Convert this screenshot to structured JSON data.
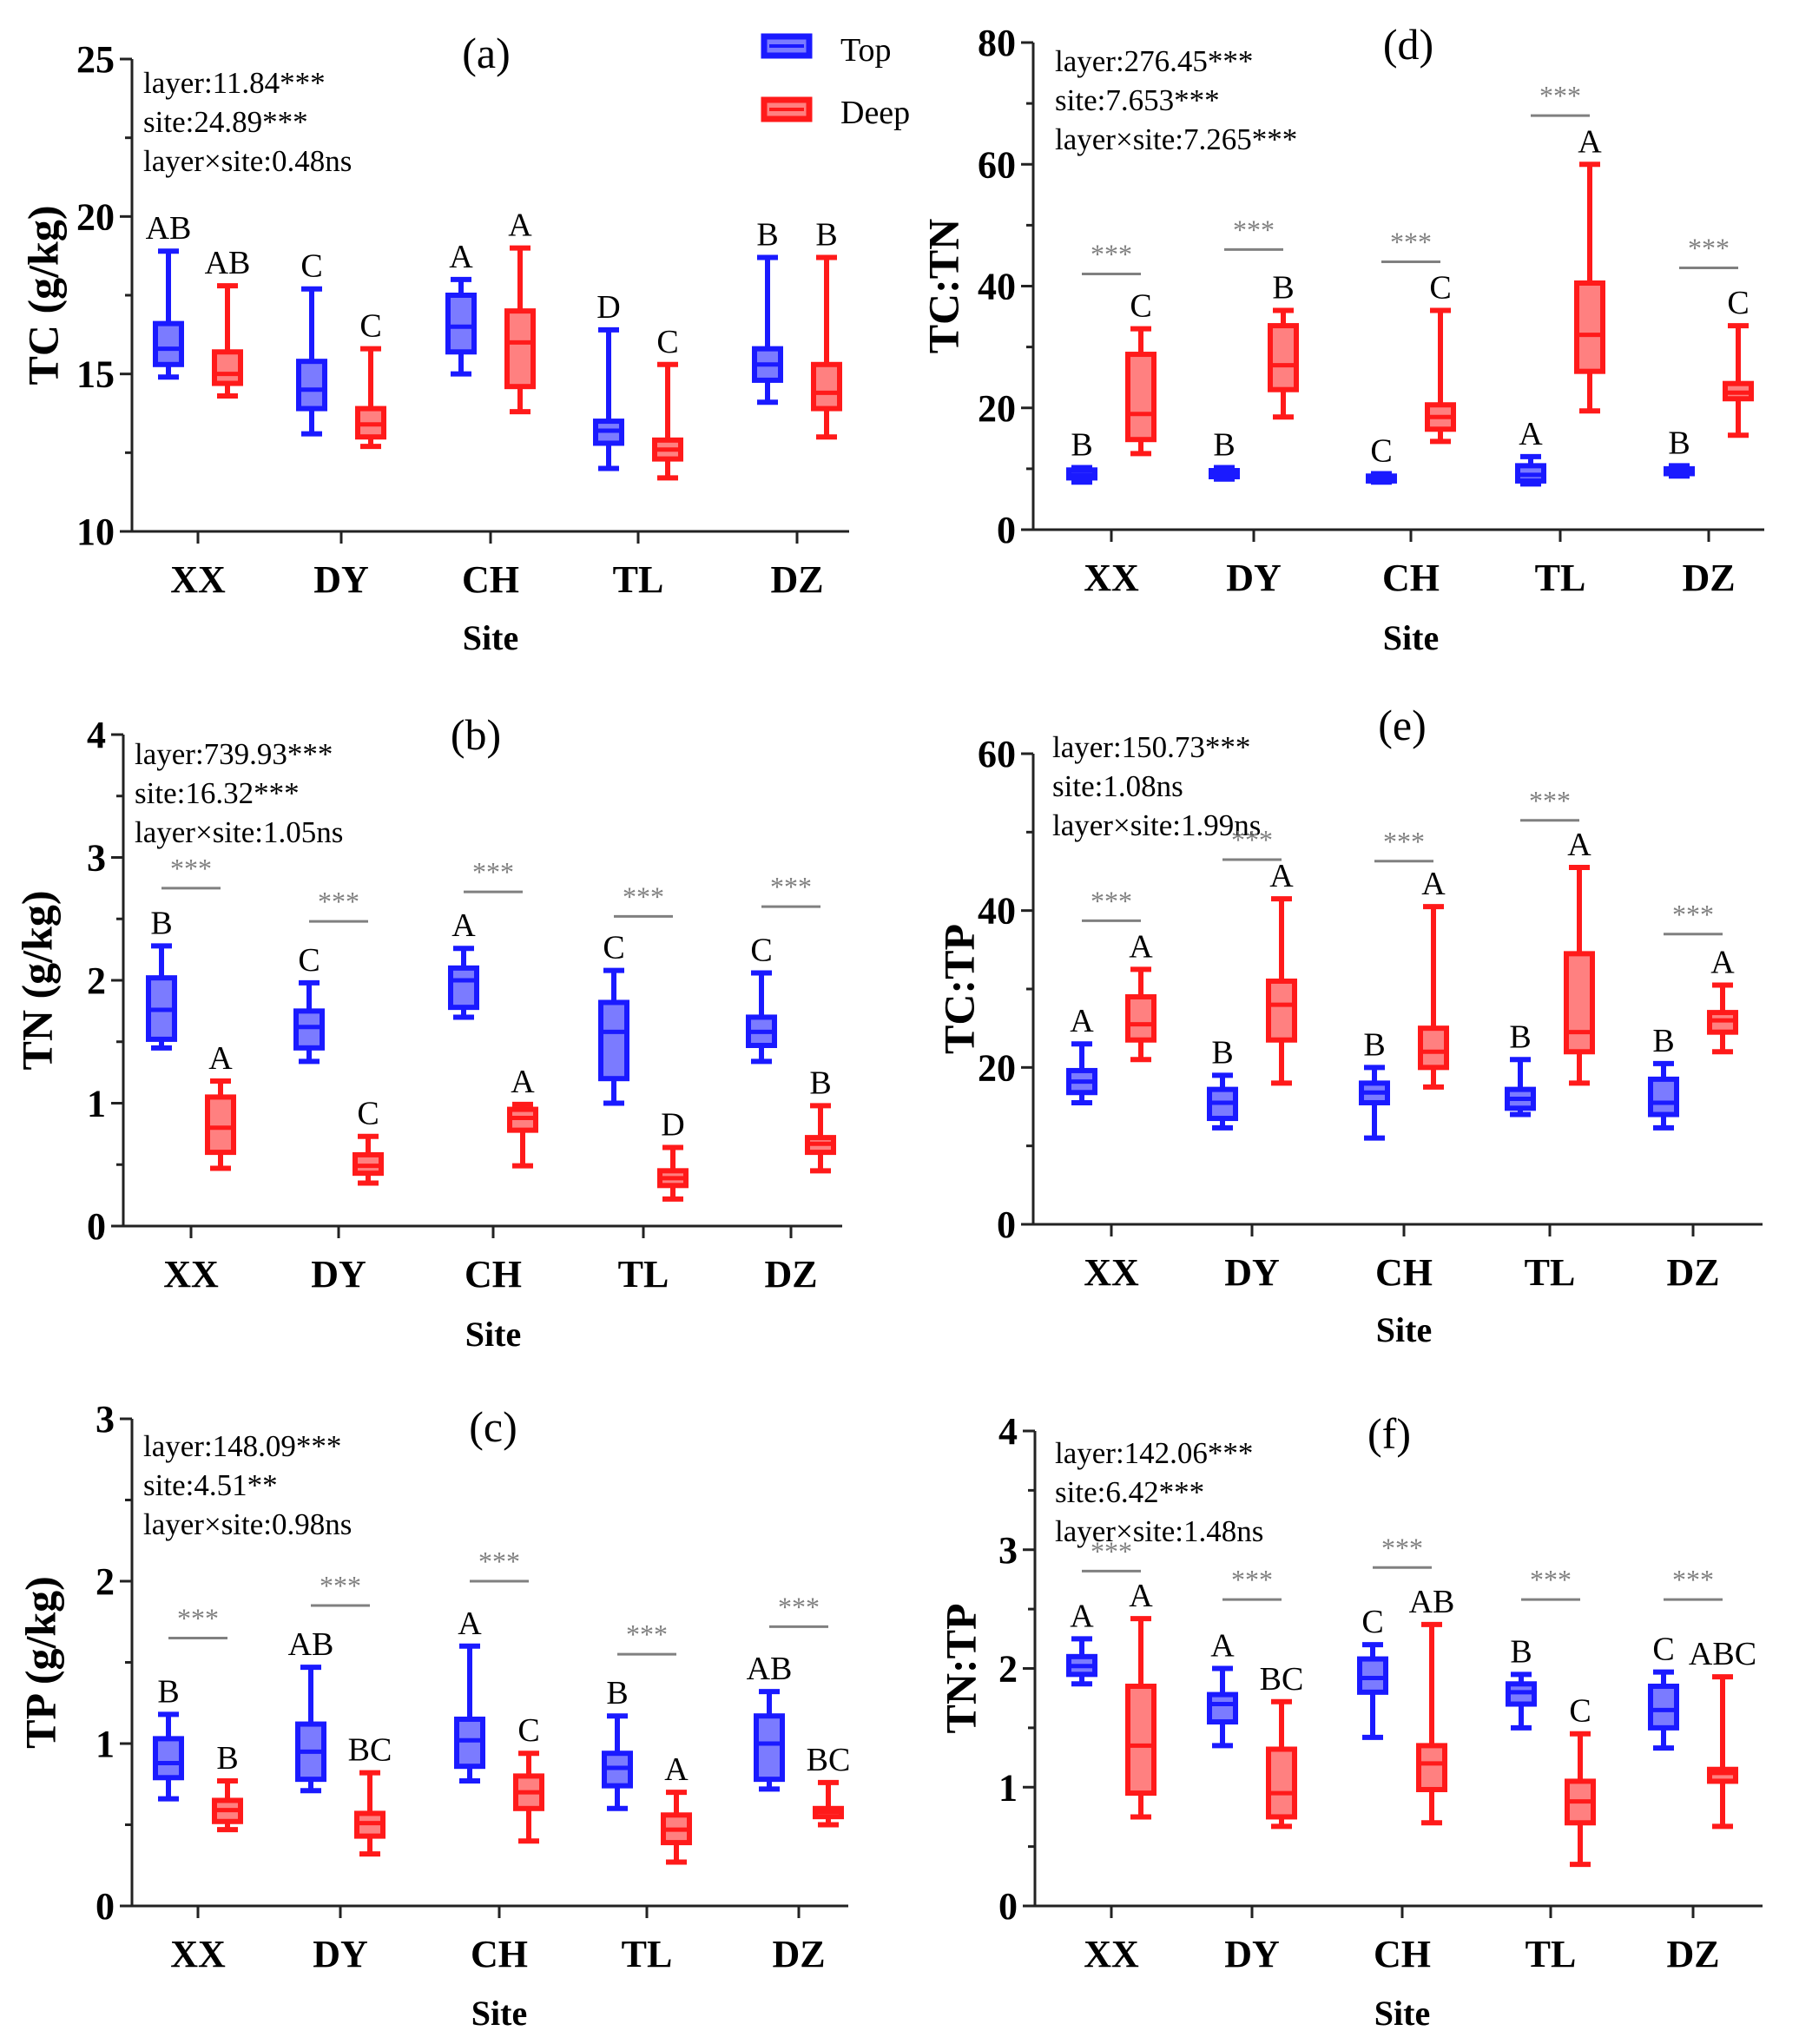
{
  "colors": {
    "top": "#1a1aff",
    "top_fill": "#7b7bff",
    "deep": "#ff1a1a",
    "deep_fill": "#ff8080",
    "sig_line": "#808080"
  },
  "legend": {
    "top_label": "Top",
    "deep_label": "Deep"
  },
  "chart_data": [
    {
      "type": "box",
      "panel_label": "(a)",
      "ylabel": "TC (g/kg)",
      "xlabel": "Site",
      "categories": [
        "XX",
        "DY",
        "CH",
        "TL",
        "DZ"
      ],
      "ylim": [
        10,
        25
      ],
      "yticks": [
        10,
        15,
        20,
        25
      ],
      "stats_text": [
        "layer:11.84***",
        "site:24.89***",
        "layer×site:0.48ns"
      ],
      "series": [
        {
          "name": "Top",
          "boxes": [
            {
              "min": 14.9,
              "q1": 15.3,
              "median": 15.8,
              "q3": 16.6,
              "max": 18.9
            },
            {
              "min": 13.1,
              "q1": 13.9,
              "median": 14.5,
              "q3": 15.4,
              "max": 17.7
            },
            {
              "min": 15.0,
              "q1": 15.7,
              "median": 16.5,
              "q3": 17.5,
              "max": 18.0
            },
            {
              "min": 12.0,
              "q1": 12.8,
              "median": 13.2,
              "q3": 13.5,
              "max": 16.4
            },
            {
              "min": 14.1,
              "q1": 14.8,
              "median": 15.3,
              "q3": 15.8,
              "max": 18.7
            }
          ],
          "letters": [
            "AB",
            "C",
            "A",
            "D",
            "B"
          ]
        },
        {
          "name": "Deep",
          "boxes": [
            {
              "min": 14.3,
              "q1": 14.7,
              "median": 15.0,
              "q3": 15.7,
              "max": 17.8
            },
            {
              "min": 12.7,
              "q1": 13.0,
              "median": 13.4,
              "q3": 13.9,
              "max": 15.8
            },
            {
              "min": 13.8,
              "q1": 14.6,
              "median": 16.0,
              "q3": 17.0,
              "max": 19.0
            },
            {
              "min": 11.7,
              "q1": 12.3,
              "median": 12.6,
              "q3": 12.9,
              "max": 15.3
            },
            {
              "min": 13.0,
              "q1": 13.9,
              "median": 14.4,
              "q3": 15.3,
              "max": 18.7
            }
          ],
          "letters": [
            "AB",
            "C",
            "A",
            "C",
            "B"
          ]
        }
      ],
      "significance": []
    },
    {
      "type": "box",
      "panel_label": "(b)",
      "ylabel": "TN (g/kg)",
      "xlabel": "Site",
      "categories": [
        "XX",
        "DY",
        "CH",
        "TL",
        "DZ"
      ],
      "ylim": [
        0,
        4
      ],
      "yticks": [
        0,
        1,
        2,
        3,
        4
      ],
      "stats_text": [
        "layer:739.93***",
        "site:16.32***",
        "layer×site:1.05ns"
      ],
      "series": [
        {
          "name": "Top",
          "boxes": [
            {
              "min": 1.45,
              "q1": 1.52,
              "median": 1.76,
              "q3": 2.02,
              "max": 2.28
            },
            {
              "min": 1.34,
              "q1": 1.45,
              "median": 1.62,
              "q3": 1.75,
              "max": 1.98
            },
            {
              "min": 1.7,
              "q1": 1.78,
              "median": 2.0,
              "q3": 2.1,
              "max": 2.26
            },
            {
              "min": 1.0,
              "q1": 1.2,
              "median": 1.58,
              "q3": 1.82,
              "max": 2.08
            },
            {
              "min": 1.34,
              "q1": 1.47,
              "median": 1.58,
              "q3": 1.7,
              "max": 2.06
            }
          ],
          "letters": [
            "B",
            "C",
            "A",
            "C",
            "C"
          ]
        },
        {
          "name": "Deep",
          "boxes": [
            {
              "min": 0.47,
              "q1": 0.6,
              "median": 0.8,
              "q3": 1.05,
              "max": 1.18
            },
            {
              "min": 0.35,
              "q1": 0.43,
              "median": 0.49,
              "q3": 0.58,
              "max": 0.73
            },
            {
              "min": 0.49,
              "q1": 0.78,
              "median": 0.88,
              "q3": 0.95,
              "max": 0.99
            },
            {
              "min": 0.22,
              "q1": 0.33,
              "median": 0.39,
              "q3": 0.45,
              "max": 0.64
            },
            {
              "min": 0.45,
              "q1": 0.6,
              "median": 0.67,
              "q3": 0.72,
              "max": 0.98
            }
          ],
          "letters": [
            "A",
            "C",
            "A",
            "D",
            "B"
          ]
        }
      ],
      "significance": [
        {
          "index": 0,
          "label": "***",
          "y": 2.75
        },
        {
          "index": 1,
          "label": "***",
          "y": 2.48
        },
        {
          "index": 2,
          "label": "***",
          "y": 2.72
        },
        {
          "index": 3,
          "label": "***",
          "y": 2.52
        },
        {
          "index": 4,
          "label": "***",
          "y": 2.6
        }
      ]
    },
    {
      "type": "box",
      "panel_label": "(c)",
      "ylabel": "TP (g/kg)",
      "xlabel": "Site",
      "categories": [
        "XX",
        "DY",
        "CH",
        "TL",
        "DZ"
      ],
      "ylim": [
        0,
        3
      ],
      "yticks": [
        0,
        1,
        2,
        3
      ],
      "stats_text": [
        "layer:148.09***",
        "site:4.51**",
        "layer×site:0.98ns"
      ],
      "series": [
        {
          "name": "Top",
          "boxes": [
            {
              "min": 0.66,
              "q1": 0.79,
              "median": 0.88,
              "q3": 1.03,
              "max": 1.18
            },
            {
              "min": 0.71,
              "q1": 0.78,
              "median": 0.95,
              "q3": 1.12,
              "max": 1.47
            },
            {
              "min": 0.77,
              "q1": 0.86,
              "median": 1.02,
              "q3": 1.15,
              "max": 1.6
            },
            {
              "min": 0.6,
              "q1": 0.74,
              "median": 0.85,
              "q3": 0.94,
              "max": 1.17
            },
            {
              "min": 0.72,
              "q1": 0.78,
              "median": 1.0,
              "q3": 1.17,
              "max": 1.32
            }
          ],
          "letters": [
            "B",
            "AB",
            "A",
            "B",
            "AB"
          ]
        },
        {
          "name": "Deep",
          "boxes": [
            {
              "min": 0.47,
              "q1": 0.52,
              "median": 0.59,
              "q3": 0.65,
              "max": 0.77
            },
            {
              "min": 0.32,
              "q1": 0.43,
              "median": 0.51,
              "q3": 0.57,
              "max": 0.82
            },
            {
              "min": 0.4,
              "q1": 0.6,
              "median": 0.7,
              "q3": 0.8,
              "max": 0.94
            },
            {
              "min": 0.27,
              "q1": 0.39,
              "median": 0.47,
              "q3": 0.56,
              "max": 0.7
            },
            {
              "min": 0.5,
              "q1": 0.55,
              "median": 0.58,
              "q3": 0.6,
              "max": 0.76
            }
          ],
          "letters": [
            "B",
            "BC",
            "C",
            "A",
            "BC"
          ]
        }
      ],
      "significance": [
        {
          "index": 0,
          "label": "***",
          "y": 1.65
        },
        {
          "index": 1,
          "label": "***",
          "y": 1.85
        },
        {
          "index": 2,
          "label": "***",
          "y": 2.0
        },
        {
          "index": 3,
          "label": "***",
          "y": 1.55
        },
        {
          "index": 4,
          "label": "***",
          "y": 1.72
        }
      ]
    },
    {
      "type": "box",
      "panel_label": "(d)",
      "ylabel": "TC:TN",
      "xlabel": "Site",
      "categories": [
        "XX",
        "DY",
        "CH",
        "TL",
        "DZ"
      ],
      "ylim": [
        0,
        80
      ],
      "yticks": [
        0,
        20,
        40,
        60,
        80
      ],
      "stats_text": [
        "layer:276.45***",
        "site:7.653***",
        "layer×site:7.265***"
      ],
      "series": [
        {
          "name": "Top",
          "boxes": [
            {
              "min": 7.8,
              "q1": 8.5,
              "median": 9.0,
              "q3": 9.8,
              "max": 10.2
            },
            {
              "min": 8.3,
              "q1": 8.7,
              "median": 9.2,
              "q3": 9.7,
              "max": 10.2
            },
            {
              "min": 7.8,
              "q1": 8.0,
              "median": 8.4,
              "q3": 8.8,
              "max": 9.2
            },
            {
              "min": 7.5,
              "q1": 8.0,
              "median": 9.0,
              "q3": 10.5,
              "max": 12.0
            },
            {
              "min": 8.8,
              "q1": 9.2,
              "median": 9.6,
              "q3": 10.0,
              "max": 10.5
            }
          ],
          "letters": [
            "B",
            "B",
            "C",
            "A",
            "B"
          ]
        },
        {
          "name": "Deep",
          "boxes": [
            {
              "min": 12.5,
              "q1": 14.8,
              "median": 19.0,
              "q3": 28.8,
              "max": 33.0
            },
            {
              "min": 18.5,
              "q1": 23.0,
              "median": 27.0,
              "q3": 33.5,
              "max": 36.0
            },
            {
              "min": 14.5,
              "q1": 16.5,
              "median": 18.5,
              "q3": 20.5,
              "max": 36.0
            },
            {
              "min": 19.5,
              "q1": 26.0,
              "median": 32.0,
              "q3": 40.5,
              "max": 60.0
            },
            {
              "min": 15.5,
              "q1": 21.5,
              "median": 22.5,
              "q3": 24.0,
              "max": 33.5
            }
          ],
          "letters": [
            "C",
            "B",
            "C",
            "A",
            "C"
          ]
        }
      ],
      "significance": [
        {
          "index": 0,
          "label": "***",
          "y": 42.0
        },
        {
          "index": 1,
          "label": "***",
          "y": 46.0
        },
        {
          "index": 2,
          "label": "***",
          "y": 44.0
        },
        {
          "index": 3,
          "label": "***",
          "y": 68.0
        },
        {
          "index": 4,
          "label": "***",
          "y": 43.0
        }
      ]
    },
    {
      "type": "box",
      "panel_label": "(e)",
      "ylabel": "TC:TP",
      "xlabel": "Site",
      "categories": [
        "XX",
        "DY",
        "CH",
        "TL",
        "DZ"
      ],
      "ylim": [
        0,
        60
      ],
      "yticks": [
        0,
        20,
        40,
        60
      ],
      "stats_text": [
        "layer:150.73***",
        "site:1.08ns",
        "layer×site:1.99ns"
      ],
      "series": [
        {
          "name": "Top",
          "boxes": [
            {
              "min": 15.5,
              "q1": 16.8,
              "median": 18.2,
              "q3": 19.6,
              "max": 23.0
            },
            {
              "min": 12.3,
              "q1": 13.5,
              "median": 15.5,
              "q3": 17.2,
              "max": 19.0
            },
            {
              "min": 11.0,
              "q1": 15.5,
              "median": 16.8,
              "q3": 18.0,
              "max": 20.0
            },
            {
              "min": 14.0,
              "q1": 14.8,
              "median": 16.0,
              "q3": 17.2,
              "max": 21.0
            },
            {
              "min": 12.3,
              "q1": 14.0,
              "median": 15.5,
              "q3": 18.5,
              "max": 20.5
            }
          ],
          "letters": [
            "A",
            "B",
            "B",
            "B",
            "B"
          ]
        },
        {
          "name": "Deep",
          "boxes": [
            {
              "min": 21.0,
              "q1": 23.5,
              "median": 25.5,
              "q3": 29.0,
              "max": 32.5
            },
            {
              "min": 18.0,
              "q1": 23.5,
              "median": 28.0,
              "q3": 31.0,
              "max": 41.5
            },
            {
              "min": 17.5,
              "q1": 20.0,
              "median": 22.0,
              "q3": 25.0,
              "max": 40.5
            },
            {
              "min": 18.0,
              "q1": 22.0,
              "median": 24.5,
              "q3": 34.5,
              "max": 45.5
            },
            {
              "min": 22.0,
              "q1": 24.5,
              "median": 26.0,
              "q3": 27.0,
              "max": 30.5
            }
          ],
          "letters": [
            "A",
            "A",
            "A",
            "A",
            "A"
          ]
        }
      ],
      "significance": [
        {
          "index": 0,
          "label": "***",
          "y": 38.7
        },
        {
          "index": 1,
          "label": "***",
          "y": 46.5
        },
        {
          "index": 2,
          "label": "***",
          "y": 46.3
        },
        {
          "index": 3,
          "label": "***",
          "y": 51.5
        },
        {
          "index": 4,
          "label": "***",
          "y": 37.0
        }
      ]
    },
    {
      "type": "box",
      "panel_label": "(f)",
      "ylabel": "TN:TP",
      "xlabel": "Site",
      "categories": [
        "XX",
        "DY",
        "CH",
        "TL",
        "DZ"
      ],
      "ylim": [
        0,
        4
      ],
      "yticks": [
        0,
        1,
        2,
        3,
        4
      ],
      "stats_text": [
        "layer:142.06***",
        "site:6.42***",
        "layer×site:1.48ns"
      ],
      "series": [
        {
          "name": "Top",
          "boxes": [
            {
              "min": 1.87,
              "q1": 1.95,
              "median": 2.02,
              "q3": 2.1,
              "max": 2.25
            },
            {
              "min": 1.35,
              "q1": 1.55,
              "median": 1.7,
              "q3": 1.78,
              "max": 2.0
            },
            {
              "min": 1.42,
              "q1": 1.8,
              "median": 1.92,
              "q3": 2.08,
              "max": 2.2
            },
            {
              "min": 1.5,
              "q1": 1.7,
              "median": 1.8,
              "q3": 1.87,
              "max": 1.95
            },
            {
              "min": 1.33,
              "q1": 1.5,
              "median": 1.65,
              "q3": 1.85,
              "max": 1.97
            }
          ],
          "letters": [
            "A",
            "A",
            "C",
            "B",
            "C"
          ]
        },
        {
          "name": "Deep",
          "boxes": [
            {
              "min": 0.75,
              "q1": 0.95,
              "median": 1.35,
              "q3": 1.85,
              "max": 2.42
            },
            {
              "min": 0.67,
              "q1": 0.75,
              "median": 0.95,
              "q3": 1.32,
              "max": 1.72
            },
            {
              "min": 0.7,
              "q1": 0.98,
              "median": 1.2,
              "q3": 1.35,
              "max": 2.37
            },
            {
              "min": 0.35,
              "q1": 0.7,
              "median": 0.88,
              "q3": 1.05,
              "max": 1.45
            },
            {
              "min": 0.67,
              "q1": 1.05,
              "median": 1.12,
              "q3": 1.15,
              "max": 1.93
            }
          ],
          "letters": [
            "A",
            "BC",
            "AB",
            "C",
            "ABC"
          ]
        }
      ],
      "significance": [
        {
          "index": 0,
          "label": "***",
          "y": 2.82
        },
        {
          "index": 1,
          "label": "***",
          "y": 2.58
        },
        {
          "index": 2,
          "label": "***",
          "y": 2.85
        },
        {
          "index": 3,
          "label": "***",
          "y": 2.58
        },
        {
          "index": 4,
          "label": "***",
          "y": 2.58
        }
      ]
    }
  ]
}
